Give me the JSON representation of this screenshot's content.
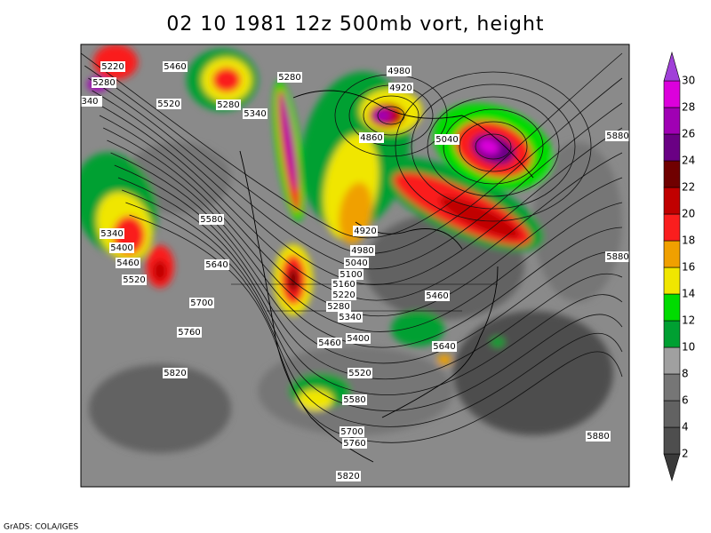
{
  "title": "02 10 1981 12z 500mb vort, height",
  "credit": "GrADS: COLA/IGES",
  "colorbar": {
    "levels": [
      2,
      4,
      6,
      8,
      10,
      12,
      14,
      16,
      18,
      20,
      22,
      24,
      26,
      28,
      30
    ],
    "colors": [
      "#3a3a3a",
      "#4e4e4e",
      "#626262",
      "#767676",
      "#a0a0a0",
      "#00a032",
      "#00dc00",
      "#f0e600",
      "#f0a000",
      "#fa1e1e",
      "#c00000",
      "#700000",
      "#6a0084",
      "#a000b4",
      "#dc00dc",
      "#a040d8"
    ]
  },
  "contour_labels": [
    "5220",
    "5460",
    "5280",
    "340",
    "5520",
    "5280",
    "5340",
    "5280",
    "4980",
    "4920",
    "4860",
    "5040",
    "5880",
    "5580",
    "5340",
    "5400",
    "5460",
    "5520",
    "5640",
    "5700",
    "5760",
    "5820",
    "4920",
    "4980",
    "5040",
    "5100",
    "5160",
    "5220",
    "5280",
    "5340",
    "5460",
    "5400",
    "5460",
    "5640",
    "5520",
    "5580",
    "5880",
    "5700",
    "5760",
    "5880",
    "5820"
  ]
}
